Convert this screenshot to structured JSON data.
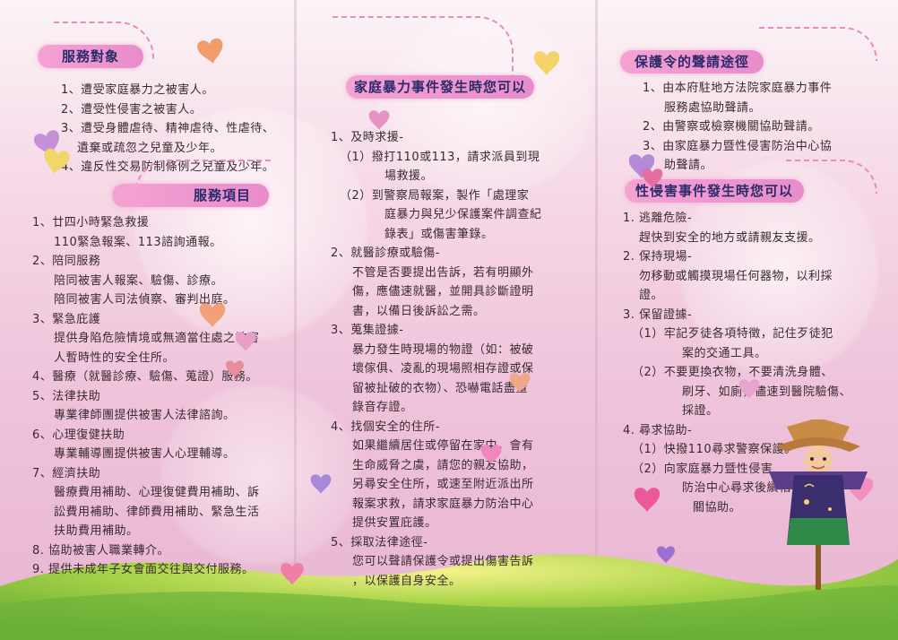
{
  "panel1": {
    "section1": {
      "title": "服務對象",
      "items": [
        "1、遭受家庭暴力之被害人。",
        "2、遭受性侵害之被害人。",
        "3、遭受身體虐待、精神虐待、性虐待、",
        "遺棄或疏忽之兒童及少年。",
        "4、違反性交易防制條例之兒童及少年。"
      ]
    },
    "section2": {
      "title": "服務項目",
      "items": [
        "1、廿四小時緊急救援",
        "110緊急報案、113諮詢通報。",
        "2、陪同服務",
        "陪同被害人報案、驗傷、診療。",
        "陪同被害人司法偵察、審判出庭。",
        "3、緊急庇護",
        "提供身陷危險情境或無適當住處之被害",
        "人暫時性的安全住所。",
        "4、醫療（就醫診療、驗傷、蒐證）服務。",
        "5、法律扶助",
        "專業律師團提供被害人法律諮詢。",
        "6、心理復健扶助",
        "專業輔導團提供被害人心理輔導。",
        "7、經濟扶助",
        "醫療費用補助、心理復健費用補助、訴",
        "訟費用補助、律師費用補助、緊急生活",
        "扶助費用補助。",
        "8. 協助被害人職業轉介。",
        "9. 提供未成年子女會面交往與交付服務。"
      ]
    }
  },
  "panel2": {
    "title": "家庭暴力事件發生時您可以",
    "items": [
      "1、及時求援-",
      "（1）撥打110或113，請求派員到現",
      "場救援。",
      "（2）到警察局報案，製作「處理家",
      "庭暴力與兒少保護案件調查紀",
      "錄表」或傷害筆錄。",
      "2、就醫診療或驗傷-",
      "不管是否要提出告訴，若有明顯外",
      "傷，應儘速就醫，並開具診斷證明",
      "書，以備日後訴訟之需。",
      "3、蒐集證據-",
      "暴力發生時現場的物證（如：被破",
      "壞傢俱、凌亂的現場照相存證或保",
      "留被扯破的衣物）、恐嚇電話盡量",
      "錄音存證。",
      "4、找個安全的住所-",
      "如果繼續居住或停留在家中，會有",
      "生命威脅之虞，請您的親友協助，",
      "另尋安全住所，或速至附近派出所",
      "報案求救，請求家庭暴力防治中心",
      "提供安置庇護。",
      "5、採取法律途徑-",
      "您可以聲請保護令或提出傷害告訴",
      "，以保護自身安全。"
    ]
  },
  "panel3": {
    "section1": {
      "title": "保護令的聲請途徑",
      "items": [
        "1、由本府駐地方法院家庭暴力事件",
        "服務處協助聲請。",
        "2、由警察或檢察機關協助聲請。",
        "3、由家庭暴力暨性侵害防治中心協",
        "助聲請。"
      ]
    },
    "section2": {
      "title": "性侵害事件發生時您可以",
      "items": [
        "1. 逃離危險-",
        "趕快到安全的地方或請親友支援。",
        "2. 保持現場-",
        "勿移動或觸摸現場任何器物，以利採",
        "證。",
        "3. 保留證據-",
        "（1）牢記歹徒各項特徵，記住歹徒犯",
        "案的交通工具。",
        "（2）不要更換衣物，不要清洗身體、",
        "刷牙、如廁，儘速到醫院驗傷、",
        "採證。",
        "4. 尋求協助-",
        "（1）快撥110尋求警察保護。",
        "（2）向家庭暴力暨性侵害",
        "防治中心尋求後續相",
        "關協助。"
      ]
    }
  },
  "colors": {
    "header_pill": "#ee97cf",
    "heading_text": "#2c2a6b",
    "body_text": "#3a2a30",
    "grass": "#8cc63f"
  }
}
